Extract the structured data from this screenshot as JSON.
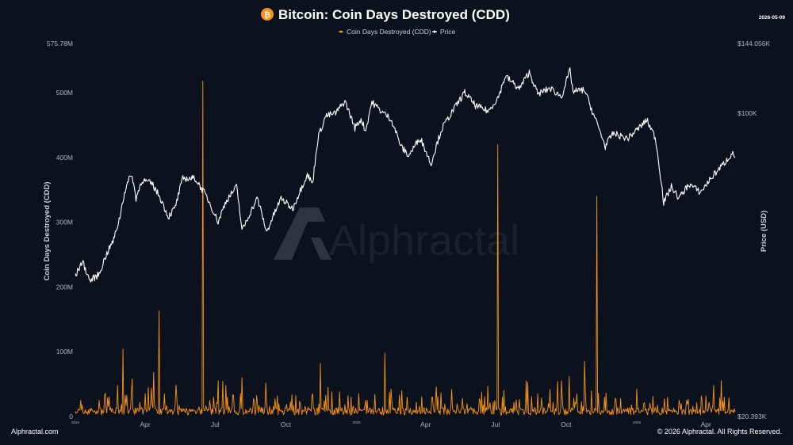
{
  "header": {
    "title": "Bitcoin: Coin Days Destroyed (CDD)",
    "date": "2026-05-09",
    "logo_glyph": "₿",
    "logo_color": "#f7931a"
  },
  "footer": {
    "left": "Alphractal.com",
    "right": "© 2026 Alphractal. All Rights Reserved."
  },
  "watermark": "Alphractal",
  "chart_data": {
    "type": "line",
    "x_range": [
      "2024-01-01",
      "2026-05-09"
    ],
    "x_ticks": [
      {
        "date": "2024-01-01",
        "label": "2024",
        "tiny": true
      },
      {
        "date": "2024-04-01",
        "label": "Apr"
      },
      {
        "date": "2024-07-01",
        "label": "Jul"
      },
      {
        "date": "2024-10-01",
        "label": "Oct"
      },
      {
        "date": "2025-01-01",
        "label": "2025",
        "tiny": true
      },
      {
        "date": "2025-04-01",
        "label": "Apr"
      },
      {
        "date": "2025-07-01",
        "label": "Jul"
      },
      {
        "date": "2025-10-01",
        "label": "Oct"
      },
      {
        "date": "2026-01-01",
        "label": "2026",
        "tiny": true
      },
      {
        "date": "2026-04-01",
        "label": "Apr"
      }
    ],
    "y_left": {
      "label": "Coin Days Destroyed (CDD)",
      "range": [
        0,
        575780000
      ],
      "ticks": [
        {
          "value": 0,
          "label": "0"
        },
        {
          "value": 100000000,
          "label": "100M"
        },
        {
          "value": 200000000,
          "label": "200M"
        },
        {
          "value": 300000000,
          "label": "300M"
        },
        {
          "value": 400000000,
          "label": "400M"
        },
        {
          "value": 500000000,
          "label": "500M"
        },
        {
          "value": 575780000,
          "label": "575.78M"
        }
      ]
    },
    "y_right": {
      "label": "Price (USD)",
      "scale": "log",
      "range": [
        20393,
        144056
      ],
      "ticks": [
        {
          "value": 20393,
          "label": "$20.393K"
        },
        {
          "value": 100000,
          "label": "$100K"
        },
        {
          "value": 144056,
          "label": "$144.056K"
        }
      ]
    },
    "legend": {
      "placement": "top-center",
      "entries": [
        {
          "name": "Coin Days Destroyed (CDD)",
          "color": "#f7931a"
        },
        {
          "name": "Price",
          "color": "#ffffff"
        }
      ]
    },
    "series": [
      {
        "name": "Coin Days Destroyed (CDD)",
        "color": "#f7931a",
        "axis": "left",
        "base_level": 8000000,
        "points": [
          [
            "2024-01-01",
            8000000
          ],
          [
            "2024-01-10",
            18000000
          ],
          [
            "2024-01-20",
            12000000
          ],
          [
            "2024-02-01",
            25000000
          ],
          [
            "2024-02-15",
            10000000
          ],
          [
            "2024-02-25",
            48000000
          ],
          [
            "2024-03-03",
            104000000
          ],
          [
            "2024-03-08",
            30000000
          ],
          [
            "2024-03-15",
            58000000
          ],
          [
            "2024-03-25",
            22000000
          ],
          [
            "2024-04-05",
            45000000
          ],
          [
            "2024-04-12",
            68000000
          ],
          [
            "2024-04-19",
            163000000
          ],
          [
            "2024-04-26",
            35000000
          ],
          [
            "2024-05-10",
            18000000
          ],
          [
            "2024-05-25",
            12000000
          ],
          [
            "2024-06-10",
            15000000
          ],
          [
            "2024-06-15",
            518000000
          ],
          [
            "2024-06-25",
            14000000
          ],
          [
            "2024-07-05",
            55000000
          ],
          [
            "2024-07-15",
            48000000
          ],
          [
            "2024-07-25",
            32000000
          ],
          [
            "2024-08-05",
            60000000
          ],
          [
            "2024-08-20",
            28000000
          ],
          [
            "2024-09-10",
            15000000
          ],
          [
            "2024-09-20",
            10000000
          ],
          [
            "2024-10-05",
            12000000
          ],
          [
            "2024-10-20",
            20000000
          ],
          [
            "2024-11-05",
            35000000
          ],
          [
            "2024-11-15",
            82000000
          ],
          [
            "2024-11-25",
            45000000
          ],
          [
            "2024-12-10",
            38000000
          ],
          [
            "2024-12-25",
            30000000
          ],
          [
            "2025-01-15",
            25000000
          ],
          [
            "2025-01-25",
            34000000
          ],
          [
            "2025-02-07",
            98000000
          ],
          [
            "2025-02-15",
            28000000
          ],
          [
            "2025-03-01",
            40000000
          ],
          [
            "2025-03-20",
            22000000
          ],
          [
            "2025-04-10",
            30000000
          ],
          [
            "2025-05-05",
            42000000
          ],
          [
            "2025-05-25",
            20000000
          ],
          [
            "2025-06-15",
            18000000
          ],
          [
            "2025-06-30",
            25000000
          ],
          [
            "2025-07-04",
            420000000
          ],
          [
            "2025-07-10",
            30000000
          ],
          [
            "2025-07-25",
            22000000
          ],
          [
            "2025-08-10",
            55000000
          ],
          [
            "2025-08-25",
            35000000
          ],
          [
            "2025-09-10",
            42000000
          ],
          [
            "2025-09-25",
            55000000
          ],
          [
            "2025-10-05",
            62000000
          ],
          [
            "2025-10-15",
            35000000
          ],
          [
            "2025-10-25",
            85000000
          ],
          [
            "2025-11-03",
            40000000
          ],
          [
            "2025-11-10",
            340000000
          ],
          [
            "2025-11-20",
            30000000
          ],
          [
            "2025-12-05",
            25000000
          ],
          [
            "2025-12-25",
            18000000
          ],
          [
            "2026-01-10",
            20000000
          ],
          [
            "2026-01-25",
            14000000
          ],
          [
            "2026-02-10",
            30000000
          ],
          [
            "2026-02-25",
            12000000
          ],
          [
            "2026-03-15",
            16000000
          ],
          [
            "2026-04-05",
            22000000
          ],
          [
            "2026-04-15",
            10000000
          ],
          [
            "2026-04-25",
            30000000
          ],
          [
            "2026-05-05",
            8000000
          ]
        ]
      },
      {
        "name": "Price",
        "color": "#ffffff",
        "axis": "right",
        "points": [
          [
            "2024-01-01",
            42500
          ],
          [
            "2024-01-10",
            46000
          ],
          [
            "2024-01-20",
            41500
          ],
          [
            "2024-02-01",
            43000
          ],
          [
            "2024-02-10",
            47500
          ],
          [
            "2024-02-20",
            51500
          ],
          [
            "2024-02-28",
            58000
          ],
          [
            "2024-03-05",
            66000
          ],
          [
            "2024-03-14",
            73000
          ],
          [
            "2024-03-20",
            64000
          ],
          [
            "2024-03-28",
            70500
          ],
          [
            "2024-04-10",
            69000
          ],
          [
            "2024-04-20",
            64500
          ],
          [
            "2024-05-01",
            58000
          ],
          [
            "2024-05-10",
            61000
          ],
          [
            "2024-05-20",
            71000
          ],
          [
            "2024-06-05",
            71000
          ],
          [
            "2024-06-20",
            64500
          ],
          [
            "2024-07-05",
            56500
          ],
          [
            "2024-07-15",
            63000
          ],
          [
            "2024-07-29",
            68000
          ],
          [
            "2024-08-05",
            54000
          ],
          [
            "2024-08-25",
            64000
          ],
          [
            "2024-09-06",
            53500
          ],
          [
            "2024-09-25",
            64000
          ],
          [
            "2024-10-10",
            60500
          ],
          [
            "2024-10-29",
            72500
          ],
          [
            "2024-11-05",
            69000
          ],
          [
            "2024-11-12",
            88000
          ],
          [
            "2024-11-22",
            98500
          ],
          [
            "2024-12-05",
            100000
          ],
          [
            "2024-12-17",
            106500
          ],
          [
            "2024-12-30",
            92500
          ],
          [
            "2025-01-07",
            97000
          ],
          [
            "2025-01-13",
            91000
          ],
          [
            "2025-01-21",
            106000
          ],
          [
            "2025-02-01",
            101500
          ],
          [
            "2025-02-15",
            97000
          ],
          [
            "2025-02-28",
            84000
          ],
          [
            "2025-03-10",
            80000
          ],
          [
            "2025-03-25",
            88000
          ],
          [
            "2025-04-08",
            76500
          ],
          [
            "2025-04-22",
            92000
          ],
          [
            "2025-05-10",
            103500
          ],
          [
            "2025-05-22",
            111500
          ],
          [
            "2025-06-05",
            104000
          ],
          [
            "2025-06-22",
            101000
          ],
          [
            "2025-07-05",
            109000
          ],
          [
            "2025-07-14",
            121500
          ],
          [
            "2025-08-01",
            113500
          ],
          [
            "2025-08-14",
            124000
          ],
          [
            "2025-08-25",
            110500
          ],
          [
            "2025-09-10",
            114000
          ],
          [
            "2025-09-25",
            109000
          ],
          [
            "2025-10-06",
            125000
          ],
          [
            "2025-10-10",
            112000
          ],
          [
            "2025-10-25",
            113000
          ],
          [
            "2025-11-04",
            101000
          ],
          [
            "2025-11-21",
            84000
          ],
          [
            "2025-12-01",
            90000
          ],
          [
            "2025-12-20",
            87500
          ],
          [
            "2026-01-05",
            93000
          ],
          [
            "2026-01-14",
            96500
          ],
          [
            "2026-01-25",
            88000
          ],
          [
            "2026-02-05",
            62500
          ],
          [
            "2026-02-15",
            68000
          ],
          [
            "2026-02-25",
            64000
          ],
          [
            "2026-03-10",
            69000
          ],
          [
            "2026-03-25",
            66000
          ],
          [
            "2026-04-10",
            72000
          ],
          [
            "2026-04-25",
            77000
          ],
          [
            "2026-05-05",
            81000
          ],
          [
            "2026-05-09",
            79500
          ]
        ]
      }
    ]
  }
}
